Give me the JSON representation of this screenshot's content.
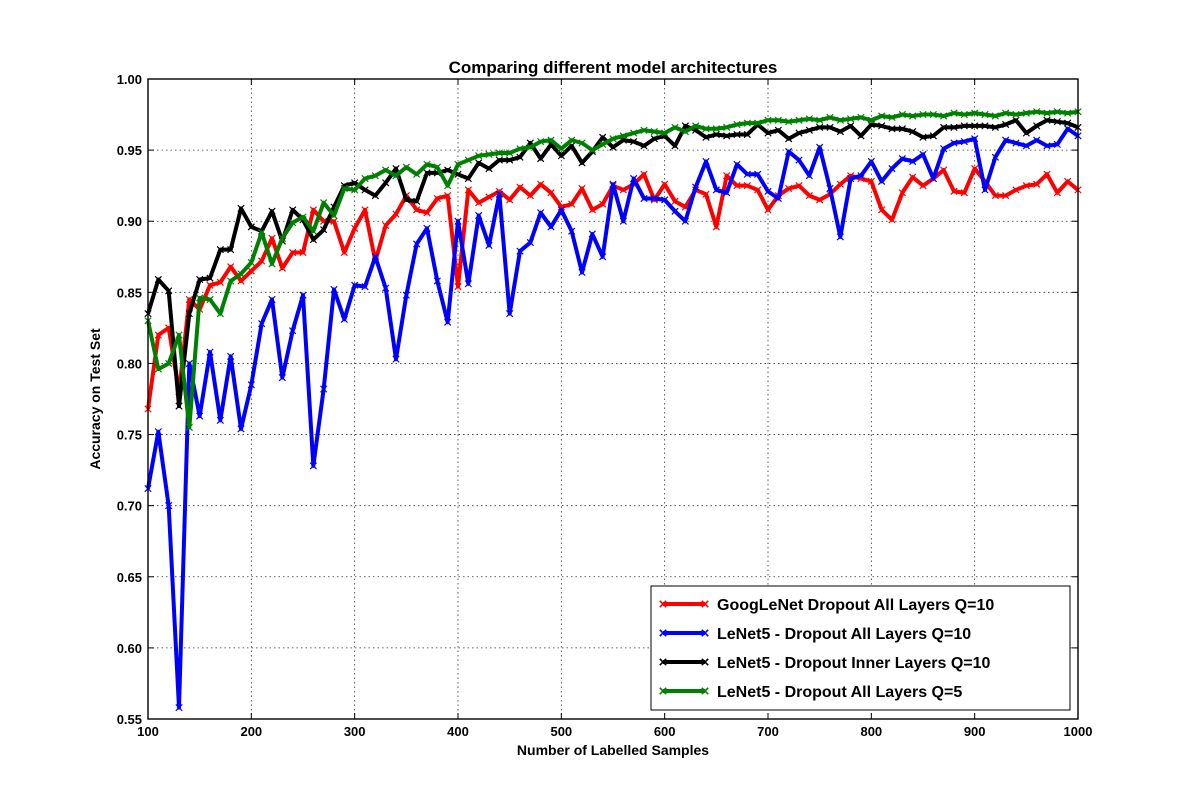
{
  "chart_data": {
    "type": "line",
    "title": "Comparing different model architectures",
    "xlabel": "Number of Labelled Samples",
    "ylabel": "Accuracy on Test Set",
    "xlim": [
      100,
      1000
    ],
    "ylim": [
      0.55,
      1.0
    ],
    "xticks": [
      "100",
      "200",
      "300",
      "400",
      "500",
      "600",
      "700",
      "800",
      "900",
      "1000"
    ],
    "yticks": [
      "0.55",
      "0.60",
      "0.65",
      "0.70",
      "0.75",
      "0.80",
      "0.85",
      "0.90",
      "0.95",
      "1.00"
    ],
    "grid": true,
    "legend_position": "lower-right",
    "x": [
      100,
      110,
      120,
      130,
      140,
      150,
      160,
      170,
      180,
      190,
      200,
      210,
      220,
      230,
      240,
      250,
      260,
      270,
      280,
      290,
      300,
      310,
      320,
      330,
      340,
      350,
      360,
      370,
      380,
      390,
      400,
      410,
      420,
      430,
      440,
      450,
      460,
      470,
      480,
      490,
      500,
      510,
      520,
      530,
      540,
      550,
      560,
      570,
      580,
      590,
      600,
      610,
      620,
      630,
      640,
      650,
      660,
      670,
      680,
      690,
      700,
      710,
      720,
      730,
      740,
      750,
      760,
      770,
      780,
      790,
      800,
      810,
      820,
      830,
      840,
      850,
      860,
      870,
      880,
      890,
      900,
      910,
      920,
      930,
      940,
      950,
      960,
      970,
      980,
      990,
      1000
    ],
    "series": [
      {
        "name": "GoogLeNet Dropout All Layers Q=10",
        "color": "#ff0000",
        "values": [
          0.768,
          0.82,
          0.825,
          0.78,
          0.845,
          0.838,
          0.855,
          0.857,
          0.868,
          0.858,
          0.865,
          0.872,
          0.888,
          0.867,
          0.878,
          0.878,
          0.908,
          0.9,
          0.9,
          0.878,
          0.895,
          0.908,
          0.872,
          0.897,
          0.905,
          0.918,
          0.908,
          0.906,
          0.916,
          0.918,
          0.854,
          0.922,
          0.913,
          0.917,
          0.921,
          0.915,
          0.924,
          0.918,
          0.926,
          0.92,
          0.91,
          0.912,
          0.923,
          0.908,
          0.912,
          0.925,
          0.922,
          0.926,
          0.933,
          0.915,
          0.926,
          0.914,
          0.91,
          0.922,
          0.919,
          0.896,
          0.932,
          0.925,
          0.925,
          0.922,
          0.908,
          0.918,
          0.923,
          0.925,
          0.918,
          0.915,
          0.919,
          0.926,
          0.932,
          0.93,
          0.928,
          0.908,
          0.901,
          0.92,
          0.931,
          0.925,
          0.93,
          0.936,
          0.921,
          0.92,
          0.937,
          0.928,
          0.918,
          0.918,
          0.922,
          0.925,
          0.926,
          0.933,
          0.92,
          0.928,
          0.922
        ]
      },
      {
        "name": "LeNet5 - Dropout All Layers Q=10",
        "color": "#0000ff",
        "values": [
          0.712,
          0.752,
          0.7,
          0.558,
          0.8,
          0.763,
          0.808,
          0.76,
          0.805,
          0.754,
          0.785,
          0.828,
          0.845,
          0.79,
          0.823,
          0.848,
          0.728,
          0.782,
          0.852,
          0.831,
          0.855,
          0.854,
          0.875,
          0.853,
          0.803,
          0.848,
          0.884,
          0.895,
          0.858,
          0.829,
          0.9,
          0.856,
          0.904,
          0.883,
          0.919,
          0.835,
          0.879,
          0.885,
          0.906,
          0.896,
          0.908,
          0.893,
          0.864,
          0.891,
          0.875,
          0.926,
          0.9,
          0.93,
          0.916,
          0.916,
          0.915,
          0.907,
          0.9,
          0.924,
          0.942,
          0.922,
          0.92,
          0.94,
          0.933,
          0.933,
          0.921,
          0.916,
          0.949,
          0.943,
          0.932,
          0.952,
          0.923,
          0.889,
          0.93,
          0.932,
          0.942,
          0.928,
          0.937,
          0.944,
          0.942,
          0.947,
          0.93,
          0.951,
          0.955,
          0.956,
          0.958,
          0.922,
          0.945,
          0.957,
          0.955,
          0.953,
          0.957,
          0.953,
          0.954,
          0.965,
          0.96
        ]
      },
      {
        "name": "LeNet5 - Dropout Inner Layers Q=10",
        "color": "#000000",
        "values": [
          0.835,
          0.859,
          0.851,
          0.77,
          0.835,
          0.859,
          0.86,
          0.88,
          0.88,
          0.909,
          0.896,
          0.893,
          0.907,
          0.886,
          0.908,
          0.901,
          0.887,
          0.894,
          0.91,
          0.925,
          0.927,
          0.922,
          0.918,
          0.927,
          0.937,
          0.915,
          0.914,
          0.934,
          0.934,
          0.936,
          0.933,
          0.93,
          0.941,
          0.937,
          0.943,
          0.943,
          0.945,
          0.955,
          0.944,
          0.954,
          0.946,
          0.953,
          0.941,
          0.949,
          0.959,
          0.952,
          0.957,
          0.956,
          0.953,
          0.958,
          0.96,
          0.953,
          0.967,
          0.964,
          0.959,
          0.961,
          0.96,
          0.961,
          0.961,
          0.968,
          0.962,
          0.964,
          0.958,
          0.962,
          0.964,
          0.966,
          0.966,
          0.963,
          0.967,
          0.96,
          0.968,
          0.967,
          0.965,
          0.965,
          0.963,
          0.959,
          0.96,
          0.966,
          0.966,
          0.967,
          0.967,
          0.967,
          0.966,
          0.968,
          0.971,
          0.962,
          0.967,
          0.971,
          0.97,
          0.969,
          0.966
        ]
      },
      {
        "name": "LeNet5 - Dropout All Layers Q=5",
        "color": "#008000",
        "values": [
          0.83,
          0.796,
          0.8,
          0.82,
          0.755,
          0.846,
          0.845,
          0.835,
          0.858,
          0.863,
          0.871,
          0.892,
          0.87,
          0.888,
          0.899,
          0.903,
          0.893,
          0.913,
          0.904,
          0.923,
          0.922,
          0.93,
          0.932,
          0.936,
          0.932,
          0.938,
          0.933,
          0.94,
          0.938,
          0.925,
          0.94,
          0.943,
          0.946,
          0.947,
          0.948,
          0.948,
          0.951,
          0.952,
          0.956,
          0.957,
          0.951,
          0.957,
          0.955,
          0.95,
          0.954,
          0.958,
          0.96,
          0.962,
          0.964,
          0.963,
          0.962,
          0.966,
          0.963,
          0.967,
          0.965,
          0.965,
          0.966,
          0.968,
          0.969,
          0.969,
          0.971,
          0.971,
          0.97,
          0.971,
          0.972,
          0.971,
          0.973,
          0.971,
          0.972,
          0.973,
          0.971,
          0.974,
          0.973,
          0.975,
          0.974,
          0.975,
          0.975,
          0.974,
          0.976,
          0.975,
          0.976,
          0.975,
          0.974,
          0.976,
          0.975,
          0.976,
          0.977,
          0.976,
          0.977,
          0.976,
          0.977
        ]
      }
    ]
  }
}
